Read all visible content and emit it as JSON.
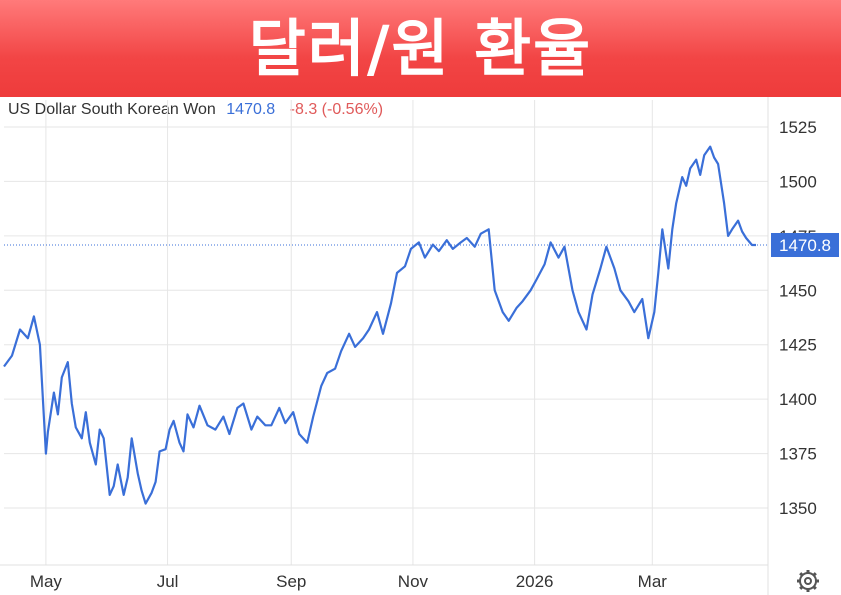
{
  "banner": {
    "title": "달러/원 환율"
  },
  "header": {
    "instrument": "US Dollar South Korean Won",
    "price": "1470.8",
    "change": "-8.3 (-0.56%)"
  },
  "colors": {
    "banner": "#f24545",
    "line": "#3a6fd8",
    "price_tag": "#3a6fd8",
    "change": "#e05a5a",
    "grid": "#e6e6e6"
  },
  "icons": {
    "settings": "gear-icon"
  },
  "chart_data": {
    "type": "line",
    "title": "",
    "xlabel": "",
    "ylabel": "",
    "ylim": [
      1325,
      1535
    ],
    "yticks": [
      1350,
      1375,
      1400,
      1425,
      1450,
      1475,
      1500,
      1525
    ],
    "xtick_labels": [
      "May",
      "Jul",
      "Sep",
      "Nov",
      "2026",
      "Mar"
    ],
    "xtick_dates": [
      "2025-05-01",
      "2025-07-01",
      "2025-09-01",
      "2025-11-01",
      "2026-01-01",
      "2026-03-01"
    ],
    "x_range": [
      "2025-04-10",
      "2026-04-28"
    ],
    "last_value": 1470.8,
    "last_value_label": "1470.8",
    "grid": true,
    "series": [
      {
        "x": [
          "2025-04-10",
          "2025-04-14",
          "2025-04-18",
          "2025-04-22",
          "2025-04-25",
          "2025-04-28",
          "2025-05-01",
          "2025-05-02",
          "2025-05-05",
          "2025-05-07",
          "2025-05-09",
          "2025-05-12",
          "2025-05-14",
          "2025-05-16",
          "2025-05-19",
          "2025-05-21",
          "2025-05-23",
          "2025-05-26",
          "2025-05-28",
          "2025-05-30",
          "2025-06-02",
          "2025-06-04",
          "2025-06-06",
          "2025-06-09",
          "2025-06-11",
          "2025-06-13",
          "2025-06-16",
          "2025-06-18",
          "2025-06-20",
          "2025-06-23",
          "2025-06-25",
          "2025-06-27",
          "2025-06-30",
          "2025-07-02",
          "2025-07-04",
          "2025-07-07",
          "2025-07-09",
          "2025-07-11",
          "2025-07-14",
          "2025-07-17",
          "2025-07-21",
          "2025-07-25",
          "2025-07-29",
          "2025-08-01",
          "2025-08-05",
          "2025-08-08",
          "2025-08-12",
          "2025-08-15",
          "2025-08-19",
          "2025-08-22",
          "2025-08-26",
          "2025-08-29",
          "2025-09-02",
          "2025-09-05",
          "2025-09-09",
          "2025-09-12",
          "2025-09-16",
          "2025-09-19",
          "2025-09-23",
          "2025-09-26",
          "2025-09-30",
          "2025-10-03",
          "2025-10-07",
          "2025-10-10",
          "2025-10-14",
          "2025-10-17",
          "2025-10-21",
          "2025-10-24",
          "2025-10-28",
          "2025-10-31",
          "2025-11-04",
          "2025-11-07",
          "2025-11-11",
          "2025-11-14",
          "2025-11-18",
          "2025-11-21",
          "2025-11-25",
          "2025-11-28",
          "2025-12-02",
          "2025-12-05",
          "2025-12-09",
          "2025-12-12",
          "2025-12-16",
          "2025-12-19",
          "2025-12-23",
          "2025-12-26",
          "2025-12-30",
          "2026-01-02",
          "2026-01-06",
          "2026-01-09",
          "2026-01-13",
          "2026-01-16",
          "2026-01-20",
          "2026-01-23",
          "2026-01-27",
          "2026-01-30",
          "2026-02-03",
          "2026-02-06",
          "2026-02-10",
          "2026-02-13",
          "2026-02-17",
          "2026-02-20",
          "2026-02-24",
          "2026-02-27",
          "2026-03-02",
          "2026-03-04",
          "2026-03-06",
          "2026-03-09",
          "2026-03-11",
          "2026-03-13",
          "2026-03-16",
          "2026-03-18",
          "2026-03-20",
          "2026-03-23",
          "2026-03-25",
          "2026-03-27",
          "2026-03-30",
          "2026-04-01",
          "2026-04-03",
          "2026-04-06",
          "2026-04-08",
          "2026-04-10",
          "2026-04-13",
          "2026-04-15",
          "2026-04-17",
          "2026-04-20",
          "2026-04-22"
        ],
        "values": [
          1415,
          1420,
          1432,
          1428,
          1438,
          1425,
          1375,
          1385,
          1403,
          1393,
          1410,
          1417,
          1398,
          1387,
          1382,
          1394,
          1380,
          1370,
          1386,
          1382,
          1356,
          1360,
          1370,
          1356,
          1364,
          1382,
          1366,
          1358,
          1352,
          1357,
          1362,
          1376,
          1377,
          1386,
          1390,
          1380,
          1376,
          1393,
          1387,
          1397,
          1388,
          1386,
          1392,
          1384,
          1396,
          1398,
          1386,
          1392,
          1388,
          1388,
          1396,
          1389,
          1394,
          1384,
          1380,
          1392,
          1406,
          1412,
          1414,
          1422,
          1430,
          1424,
          1428,
          1432,
          1440,
          1430,
          1444,
          1458,
          1461,
          1469,
          1472,
          1465,
          1471,
          1468,
          1473,
          1469,
          1472,
          1474,
          1470,
          1476,
          1478,
          1450,
          1440,
          1436,
          1442,
          1445,
          1450,
          1455,
          1462,
          1472,
          1465,
          1470,
          1450,
          1440,
          1432,
          1448,
          1460,
          1470,
          1460,
          1450,
          1445,
          1440,
          1446,
          1428,
          1440,
          1458,
          1478,
          1460,
          1478,
          1490,
          1502,
          1498,
          1506,
          1510,
          1503,
          1512,
          1516,
          1511,
          1508,
          1490,
          1475,
          1478,
          1482,
          1477,
          1474,
          1470.8,
          1470.8
        ]
      }
    ]
  }
}
